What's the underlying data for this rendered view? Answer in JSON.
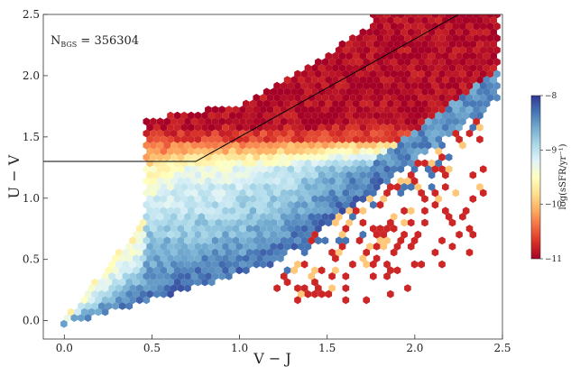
{
  "chart_data": {
    "type": "scatter",
    "style": "hexbin-density",
    "xlabel": "V − J",
    "ylabel": "U − V",
    "xlim": [
      -0.12,
      2.5
    ],
    "ylim": [
      -0.15,
      2.5
    ],
    "x_ticks": [
      {
        "value": 0.0,
        "label": "0.0"
      },
      {
        "value": 0.5,
        "label": "0.5"
      },
      {
        "value": 1.0,
        "label": "1.0"
      },
      {
        "value": 1.5,
        "label": "1.5"
      },
      {
        "value": 2.0,
        "label": "2.0"
      },
      {
        "value": 2.5,
        "label": "2.5"
      }
    ],
    "y_ticks": [
      {
        "value": 0.0,
        "label": "0.0"
      },
      {
        "value": 0.5,
        "label": "0.5"
      },
      {
        "value": 1.0,
        "label": "1.0"
      },
      {
        "value": 1.5,
        "label": "1.5"
      },
      {
        "value": 2.0,
        "label": "2.0"
      },
      {
        "value": 2.5,
        "label": "2.5"
      }
    ],
    "annotation": {
      "prefix": "N",
      "subscript": "BGS",
      "suffix": " = 356304"
    },
    "selection_line": {
      "x": [
        -0.12,
        0.75,
        2.25
      ],
      "y": [
        1.3,
        1.3,
        2.5
      ],
      "color": "#000000"
    },
    "colorbar": {
      "label": "log(sSFR/yr⁻¹)",
      "min": -11,
      "max": -8,
      "ticks": [
        {
          "value": -8,
          "label": "−8"
        },
        {
          "value": -9,
          "label": "−9"
        },
        {
          "value": -10,
          "label": "−10"
        },
        {
          "value": -11,
          "label": "−11"
        }
      ],
      "colormap": [
        "#a50026",
        "#d73027",
        "#f46d43",
        "#fdae61",
        "#fee090",
        "#ffffbf",
        "#e0f3f8",
        "#abd9e9",
        "#74add1",
        "#4575b4",
        "#313695"
      ]
    },
    "grid": false
  }
}
